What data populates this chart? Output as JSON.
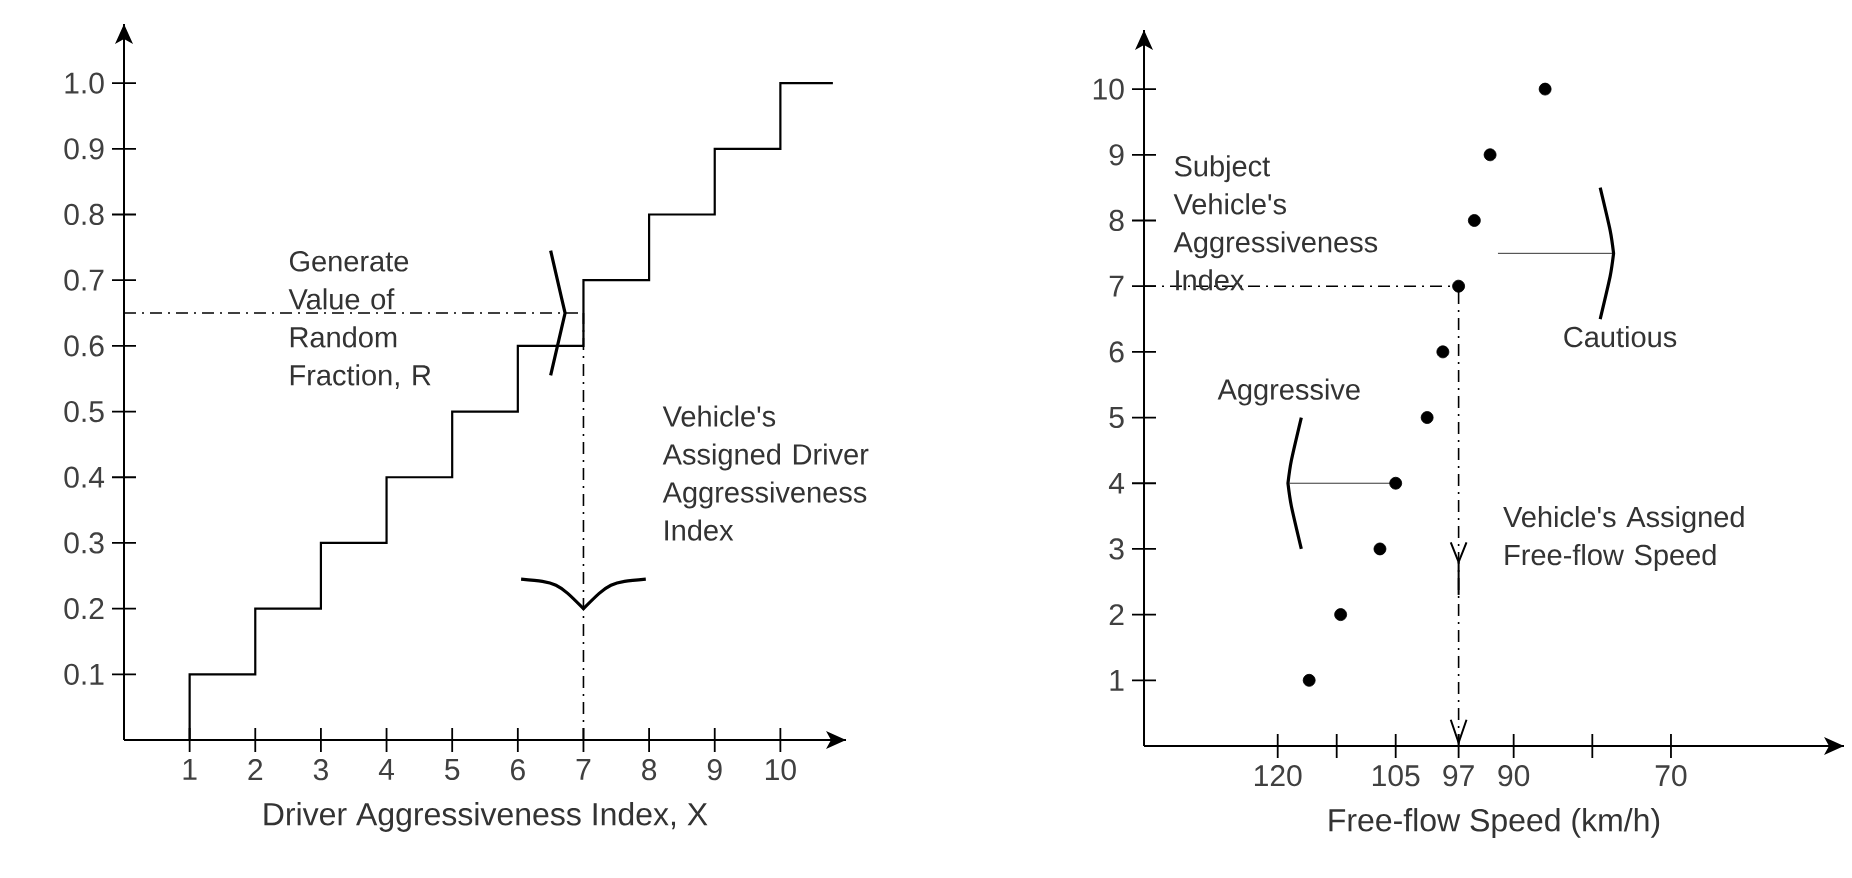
{
  "chart_data": [
    {
      "type": "step",
      "xlabel": "Driver Aggressiveness Index, X",
      "x": [
        1,
        1,
        2,
        3,
        4,
        5,
        6,
        7,
        8,
        9,
        10,
        10.8
      ],
      "values": [
        0,
        0.1,
        0.2,
        0.3,
        0.4,
        0.5,
        0.6,
        0.7,
        0.8,
        0.9,
        1,
        1
      ],
      "color": "#000000",
      "xlim": [
        0,
        11
      ],
      "ylim": [
        0,
        1.09
      ],
      "xticks": [
        1,
        2,
        3,
        4,
        5,
        6,
        7,
        8,
        9,
        10
      ],
      "yticks": [
        0.1,
        0.2,
        0.3,
        0.4,
        0.5,
        0.6,
        0.7,
        0.8,
        0.9,
        {
          "value": 1,
          "label": "1.0"
        }
      ],
      "ref_lines": [
        {
          "axis": "y",
          "value": 0.65,
          "line_style": "dashed"
        },
        {
          "axis": "x",
          "value": 7,
          "line_style": "dashed"
        }
      ],
      "annotations": [
        "Generate Value of Random Fraction, R",
        "Vehicle's Assigned Driver Aggressiveness Index"
      ]
    },
    {
      "type": "scatter",
      "xlabel": "Free-flow Speed (km/h)",
      "x": [
        116,
        112,
        107,
        105,
        101,
        99,
        97,
        95,
        93,
        86
      ],
      "values": [
        1,
        2,
        3,
        4,
        5,
        6,
        7,
        8,
        9,
        10
      ],
      "color": "#000000",
      "marker": "circle",
      "xlim": [
        137,
        48
      ],
      "ylim": [
        0,
        10.9
      ],
      "xticks": [
        120,
        {
          "value": 112.5,
          "label": null
        },
        105,
        97,
        90,
        {
          "value": 80,
          "label": null
        },
        70
      ],
      "yticks": [
        1,
        2,
        3,
        4,
        5,
        6,
        7,
        8,
        9,
        10
      ],
      "ref_lines": [
        {
          "axis": "y",
          "value": 7,
          "line_style": "dashed"
        },
        {
          "axis": "x",
          "value": 97,
          "line_style": "dashed"
        }
      ],
      "annotations": [
        "Subject Vehicle's Aggressiveness Index",
        "Aggressive",
        "Cautious",
        "Vehicle's Assigned Free-flow Speed"
      ]
    }
  ]
}
